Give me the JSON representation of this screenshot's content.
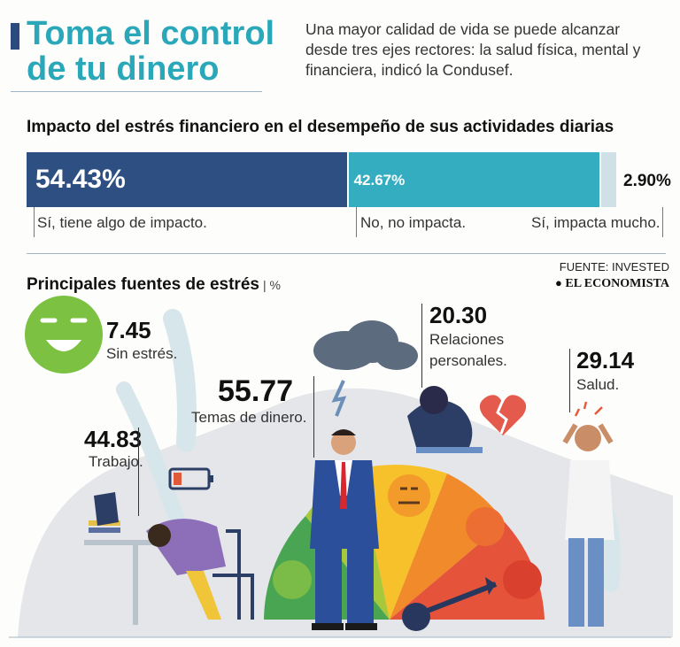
{
  "header": {
    "title_line1": "Toma el control",
    "title_line2": "de tu dinero",
    "intro": "Una mayor calidad de vida se puede alcanzar desde tres ejes rectores: la salud física, mental y financiera, indicó la Condusef."
  },
  "impact": {
    "title": "Impacto del estrés financiero en el desempeño de sus actividades diarias",
    "segments": [
      {
        "label": "Sí, tiene algo de impacto.",
        "value_label": "54.43%",
        "color": "#2d4f82"
      },
      {
        "label": "No, no impacta.",
        "value_label": "42.67%",
        "color": "#35adc0"
      },
      {
        "label": "Sí, impacta mucho.",
        "value_label": "2.90%",
        "color": "#cfe1e6"
      }
    ]
  },
  "source": {
    "text": "FUENTE: INVESTED",
    "brand": "EL ECONOMISTA"
  },
  "sources_section": {
    "title": "Principales fuentes de estrés",
    "unit": "| %",
    "items": {
      "sin_estres": {
        "value": "7.45",
        "label": "Sin estrés."
      },
      "dinero": {
        "value": "55.77",
        "label": "Temas de dinero."
      },
      "relaciones": {
        "value": "20.30",
        "label_line1": "Relaciones",
        "label_line2": "personales."
      },
      "salud": {
        "value": "29.14",
        "label": "Salud."
      },
      "trabajo": {
        "value": "44.83",
        "label": "Trabajo."
      }
    }
  },
  "chart_data": [
    {
      "type": "bar",
      "title": "Impacto del estrés financiero en el desempeño de sus actividades diarias",
      "orientation": "horizontal-stacked",
      "unit": "%",
      "categories": [
        "Sí, tiene algo de impacto.",
        "No, no impacta.",
        "Sí, impacta mucho."
      ],
      "values": [
        54.43,
        42.67,
        2.9
      ],
      "colors": [
        "#2d4f82",
        "#35adc0",
        "#cfe1e6"
      ]
    },
    {
      "type": "table",
      "title": "Principales fuentes de estrés",
      "unit": "%",
      "categories": [
        "Sin estrés.",
        "Temas de dinero.",
        "Relaciones personales.",
        "Salud.",
        "Trabajo."
      ],
      "values": [
        7.45,
        55.77,
        20.3,
        29.14,
        44.83
      ]
    }
  ]
}
